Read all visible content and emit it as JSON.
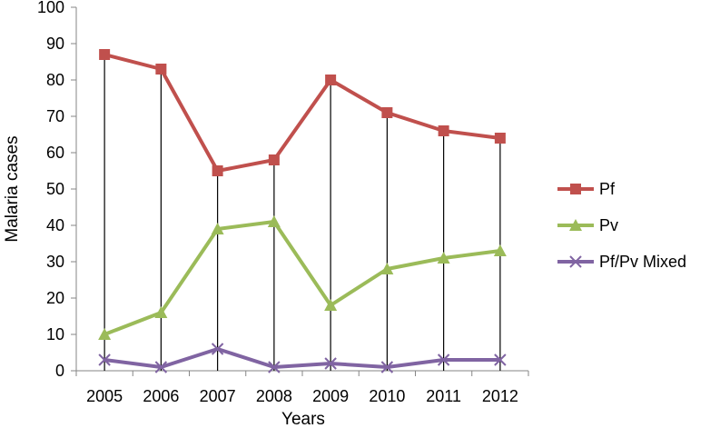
{
  "chart_data": {
    "type": "line",
    "xlabel": "Years",
    "ylabel": "Malaria cases",
    "categories": [
      "2005",
      "2006",
      "2007",
      "2008",
      "2009",
      "2010",
      "2011",
      "2012"
    ],
    "ylim": [
      0,
      100
    ],
    "yticks": [
      0,
      10,
      20,
      30,
      40,
      50,
      60,
      70,
      80,
      90,
      100
    ],
    "grid": false,
    "drop_lines": true,
    "legend_position": "right",
    "series": [
      {
        "name": "Pf",
        "values": [
          87,
          83,
          55,
          58,
          80,
          71,
          66,
          64
        ],
        "color": "#c0504d",
        "marker": "square"
      },
      {
        "name": "Pv",
        "values": [
          10,
          16,
          39,
          41,
          18,
          28,
          31,
          33
        ],
        "color": "#9bbb59",
        "marker": "triangle"
      },
      {
        "name": "Pf/Pv Mixed",
        "values": [
          3,
          1,
          6,
          1,
          2,
          1,
          3,
          3
        ],
        "color": "#8064a2",
        "marker": "x"
      }
    ]
  }
}
